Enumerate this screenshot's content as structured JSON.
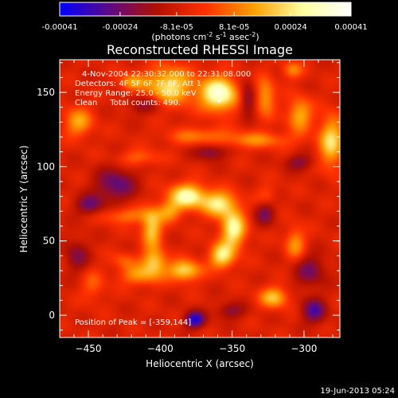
{
  "chart_data": {
    "type": "heatmap",
    "title": "Reconstructed RHESSI Image",
    "xlabel": "Heliocentric X (arcsec)",
    "ylabel": "Heliocentric Y (arcsec)",
    "xlim": [
      -470,
      -275
    ],
    "ylim": [
      -15,
      172
    ],
    "x_ticks": [
      -450,
      -400,
      -350,
      -300
    ],
    "y_ticks": [
      0,
      50,
      100,
      150
    ],
    "colorbar": {
      "min": -0.00041,
      "max": 0.00041,
      "ticks": [
        "-0.00041",
        "-0.00024",
        "-8.1e-05",
        "8.1e-05",
        "0.00024",
        "0.00041"
      ],
      "tick_values": [
        -0.00041,
        -0.00024,
        -8.1e-05,
        8.1e-05,
        0.00024,
        0.00041
      ],
      "label_parts": [
        "(photons cm",
        "-2",
        " s",
        "-1",
        " asec",
        "-2",
        ")"
      ],
      "colors": [
        "#0000ff",
        "#5a0a88",
        "#b01000",
        "#ff3000",
        "#ffa000",
        "#ffffa0",
        "#ffffff"
      ]
    },
    "annotations": [
      "4-Nov-2004 22:30:32.000 to 22:31:08.000",
      "Detectors: 4F 5F 6F 7F 8F, Att 1",
      "Energy Range: 25.0 - 50.0 keV",
      "Clean     Total counts: 490.",
      "Position of Peak = [-359,144]"
    ],
    "peak": {
      "x": -359,
      "y": 144
    },
    "sources": [
      {
        "x": -381,
        "y": 80,
        "sx": 9,
        "sy": 6,
        "value": 0.00036
      },
      {
        "x": -359,
        "y": 75,
        "sx": 8,
        "sy": 6,
        "value": 0.0003
      },
      {
        "x": -349,
        "y": 58,
        "sx": 6,
        "sy": 9,
        "value": 0.00034
      },
      {
        "x": -357,
        "y": 40,
        "sx": 6,
        "sy": 6,
        "value": 0.0003
      },
      {
        "x": -383,
        "y": 30,
        "sx": 8,
        "sy": 5,
        "value": 0.00028
      },
      {
        "x": -404,
        "y": 36,
        "sx": 6,
        "sy": 6,
        "value": 0.00024
      },
      {
        "x": -406,
        "y": 58,
        "sx": 5,
        "sy": 9,
        "value": 0.00026
      },
      {
        "x": -394,
        "y": 70,
        "sx": 6,
        "sy": 5,
        "value": 0.00016
      },
      {
        "x": -359,
        "y": 149,
        "sx": 9,
        "sy": 8,
        "value": 0.00041
      },
      {
        "x": -394,
        "y": 154,
        "sx": 12,
        "sy": 9,
        "value": 0.0003
      },
      {
        "x": -420,
        "y": 157,
        "sx": 6,
        "sy": 4,
        "value": 0.00018
      },
      {
        "x": -327,
        "y": 147,
        "sx": 5,
        "sy": 9,
        "value": 0.0002
      },
      {
        "x": -457,
        "y": 130,
        "sx": 7,
        "sy": 7,
        "value": 0.0002
      },
      {
        "x": -303,
        "y": 135,
        "sx": 6,
        "sy": 8,
        "value": 0.00022
      },
      {
        "x": -281,
        "y": 117,
        "sx": 6,
        "sy": 12,
        "value": 0.00028
      },
      {
        "x": -334,
        "y": 118,
        "sx": 18,
        "sy": 4,
        "value": 0.00016
      },
      {
        "x": -377,
        "y": 120,
        "sx": 14,
        "sy": 4,
        "value": 0.00012
      },
      {
        "x": -415,
        "y": 106,
        "sx": 10,
        "sy": 4,
        "value": 0.00012
      },
      {
        "x": -423,
        "y": 67,
        "sx": 14,
        "sy": 4,
        "value": 0.00014
      },
      {
        "x": -425,
        "y": 37,
        "sx": 6,
        "sy": 4,
        "value": 0.0001
      },
      {
        "x": -414,
        "y": 27,
        "sx": 10,
        "sy": 5,
        "value": 0.00018
      },
      {
        "x": -321,
        "y": 12,
        "sx": 7,
        "sy": 5,
        "value": 0.00024
      },
      {
        "x": -306,
        "y": 48,
        "sx": 5,
        "sy": 8,
        "value": 0.00018
      },
      {
        "x": -326,
        "y": 80,
        "sx": 5,
        "sy": 5,
        "value": 0.0001
      },
      {
        "x": -447,
        "y": 20,
        "sx": 6,
        "sy": 8,
        "value": 0.0001
      },
      {
        "x": -308,
        "y": 165,
        "sx": 5,
        "sy": 4,
        "value": 0.00016
      },
      {
        "x": -431,
        "y": 88,
        "sx": 10,
        "sy": 8,
        "value": -0.0002
      },
      {
        "x": -449,
        "y": 74,
        "sx": 7,
        "sy": 5,
        "value": -0.00018
      },
      {
        "x": -410,
        "y": 142,
        "sx": 9,
        "sy": 5,
        "value": -0.00014
      },
      {
        "x": -365,
        "y": 110,
        "sx": 8,
        "sy": 4,
        "value": -0.00016
      },
      {
        "x": -339,
        "y": 146,
        "sx": 4,
        "sy": 8,
        "value": -0.00018
      },
      {
        "x": -303,
        "y": 103,
        "sx": 7,
        "sy": 4,
        "value": -0.00014
      },
      {
        "x": -296,
        "y": 30,
        "sx": 8,
        "sy": 8,
        "value": -0.00016
      },
      {
        "x": -293,
        "y": 3,
        "sx": 6,
        "sy": 6,
        "value": -0.00022
      },
      {
        "x": -376,
        "y": -3,
        "sx": 5,
        "sy": 4,
        "value": -0.0003
      },
      {
        "x": -351,
        "y": 3,
        "sx": 7,
        "sy": 4,
        "value": -0.00014
      },
      {
        "x": -327,
        "y": 69,
        "sx": 5,
        "sy": 6,
        "value": -0.00016
      },
      {
        "x": -458,
        "y": 40,
        "sx": 6,
        "sy": 8,
        "value": -0.00014
      },
      {
        "x": -365,
        "y": 124,
        "sx": 10,
        "sy": 3,
        "value": 4e-05
      }
    ]
  },
  "footer": {
    "timestamp": "19-Jun-2013 05:24"
  }
}
